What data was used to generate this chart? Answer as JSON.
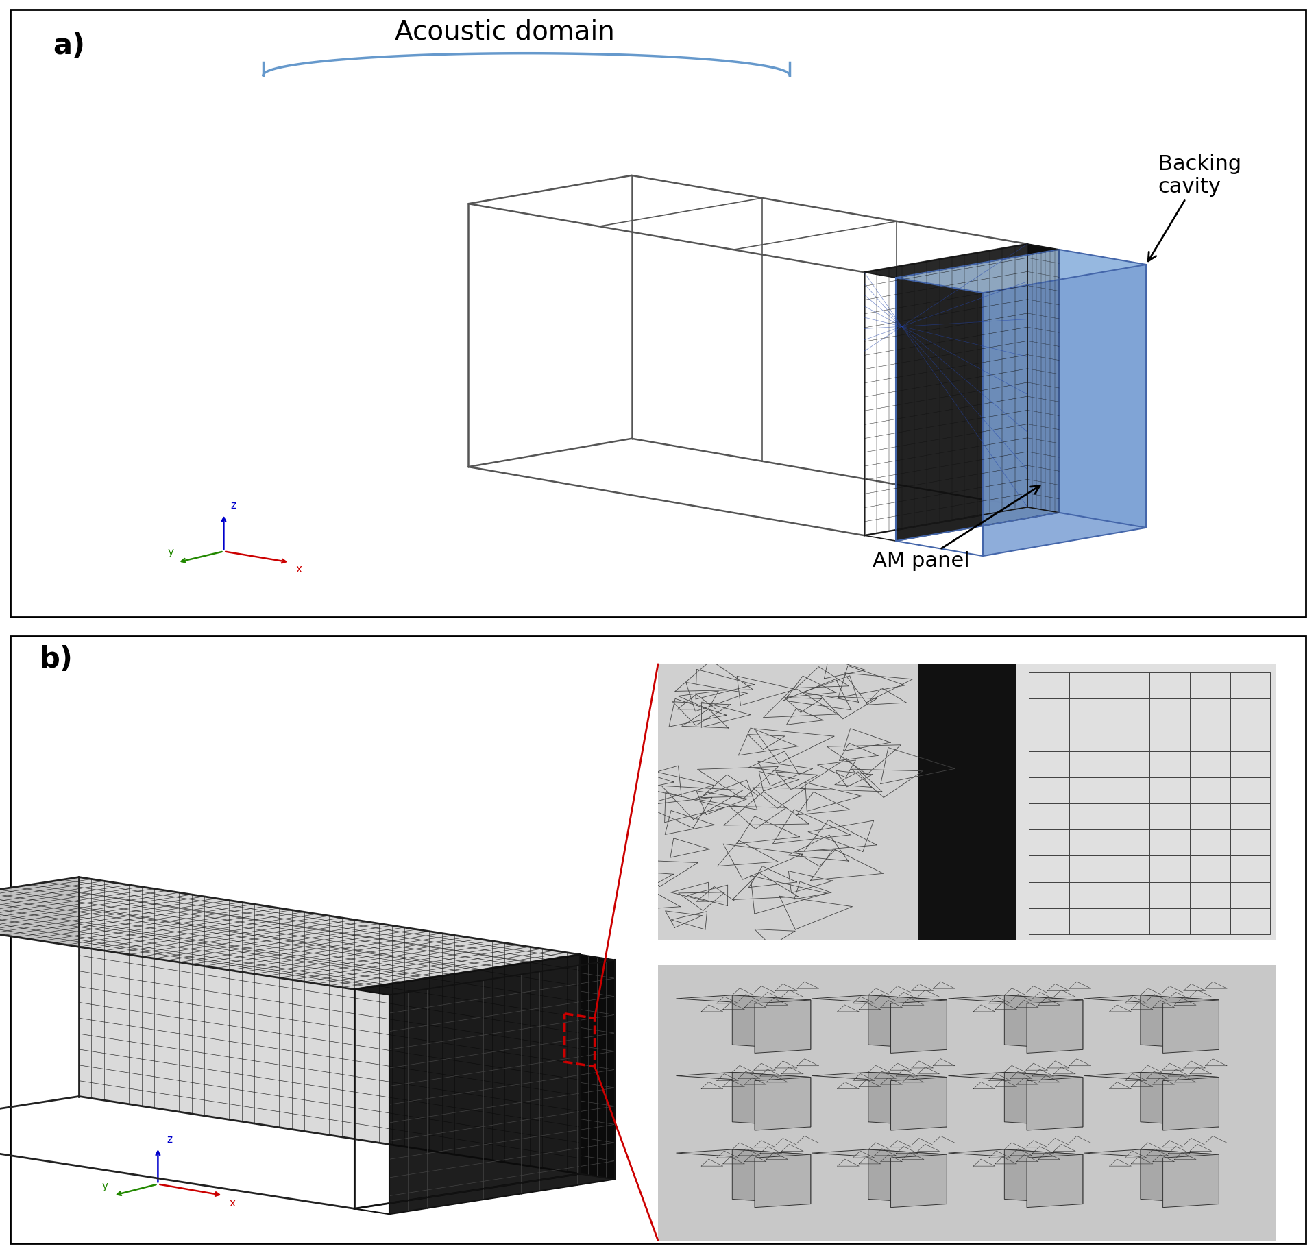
{
  "fig_width": 19.2,
  "fig_height": 18.28,
  "background_color": "#ffffff",
  "border_color": "#000000",
  "panel_a_label": "a)",
  "panel_b_label": "b)",
  "label_fontsize": 30,
  "label_fontweight": "bold",
  "acoustic_domain_text": "Acoustic domain",
  "acoustic_domain_fontsize": 28,
  "backing_cavity_text": "Backing\ncavity",
  "backing_cavity_fontsize": 22,
  "am_panel_text": "AM panel",
  "am_panel_fontsize": 22,
  "brace_color": "#6699cc",
  "edge_color_main": "#555555",
  "am_color": "#1a1a1a",
  "backing_fill": "#8ab0dc",
  "backing_top": "#aac8e8",
  "backing_side": "#7a9fd4",
  "backing_edge": "#4466aa",
  "red_color": "#cc0000",
  "mesh_dark": "#222222",
  "mesh_gray": "#888888",
  "face_top": "#c0c0c0",
  "face_front": "#d8d8d8",
  "face_side": "#b0b0b0"
}
